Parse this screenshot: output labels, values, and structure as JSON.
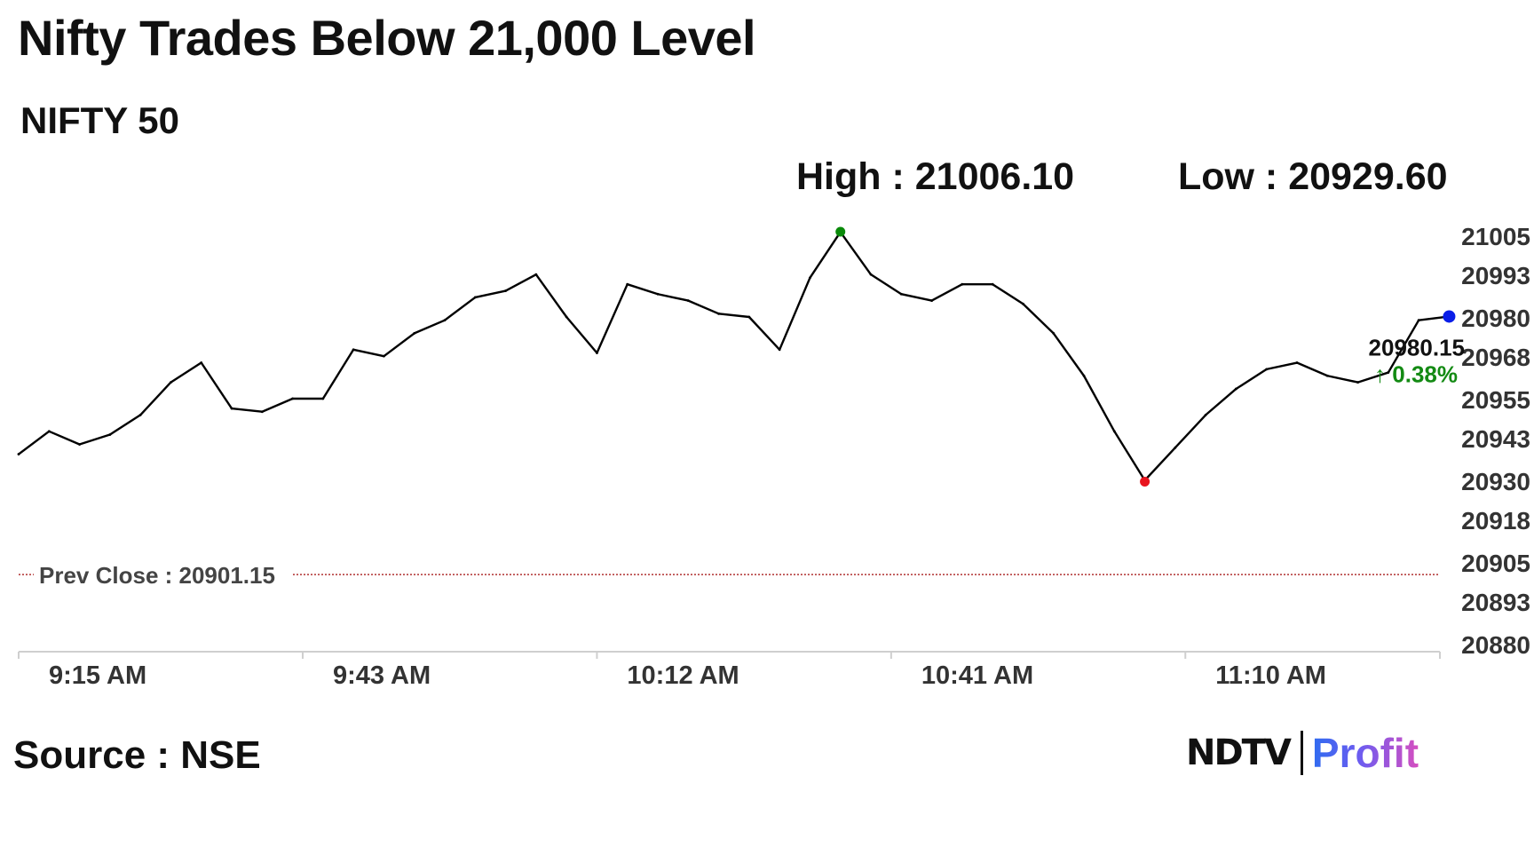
{
  "title": "Nifty Trades Below 21,000 Level",
  "subtitle": "NIFTY 50",
  "high_text": "High : 21006.10",
  "low_text": "Low : 20929.60",
  "source": "Source : NSE",
  "logo": {
    "ndtv": "NDTV",
    "profit": "Profit"
  },
  "colors": {
    "line": "#000000",
    "high_marker": "#0a8a0a",
    "low_marker": "#e8141e",
    "last_marker": "#0a1ee8",
    "change_text": "#138a13",
    "prev_close_line": "#b03030"
  },
  "chart_data": {
    "type": "line",
    "title": "NIFTY 50",
    "x": [
      "9:15 AM",
      "9:18 AM",
      "9:21 AM",
      "9:24 AM",
      "9:27 AM",
      "9:30 AM",
      "9:33 AM",
      "9:36 AM",
      "9:39 AM",
      "9:42 AM",
      "9:45 AM",
      "9:48 AM",
      "9:51 AM",
      "9:54 AM",
      "9:57 AM",
      "10:00 AM",
      "10:03 AM",
      "10:06 AM",
      "10:09 AM",
      "10:12 AM",
      "10:15 AM",
      "10:18 AM",
      "10:21 AM",
      "10:24 AM",
      "10:27 AM",
      "10:30 AM",
      "10:33 AM",
      "10:36 AM",
      "10:39 AM",
      "10:42 AM",
      "10:45 AM",
      "10:48 AM",
      "10:51 AM",
      "10:54 AM",
      "10:57 AM",
      "11:00 AM",
      "11:03 AM",
      "11:06 AM",
      "11:09 AM",
      "11:12 AM",
      "11:15 AM",
      "11:18 AM",
      "11:21 AM",
      "11:24 AM",
      "11:27 AM",
      "11:30 AM",
      "11:33 AM",
      "11:36 AM"
    ],
    "series": [
      {
        "values": [
          20938,
          20945,
          20941,
          20944,
          20950,
          20960,
          20966,
          20952,
          20951,
          20955,
          20955,
          20970,
          20968,
          20975,
          20979,
          20986,
          20988,
          20993,
          20980,
          20969,
          20990,
          20987,
          20985,
          20981,
          20980,
          20970,
          20992,
          21006,
          20993,
          20987,
          20985,
          20990,
          20990,
          20984,
          20975,
          20962,
          20945,
          20930,
          20940,
          20950,
          20958,
          20964,
          20966,
          20962,
          20960,
          20963,
          20979,
          20980.15
        ]
      }
    ],
    "xticks": [
      "9:15 AM",
      "9:43 AM",
      "10:12 AM",
      "10:41 AM",
      "11:10 AM"
    ],
    "yticks": [
      "21005",
      "20993",
      "20980",
      "20968",
      "20955",
      "20943",
      "20930",
      "20918",
      "20905",
      "20893",
      "20880"
    ],
    "ylim": [
      20880,
      21005
    ],
    "prev_close_label": "Prev Close : 20901.15",
    "prev_close": 20901.15,
    "high": 21006.1,
    "low": 20929.6,
    "last_label": "20980.15",
    "change_label": "↑ 0.38%",
    "legend": "none",
    "grid": false
  }
}
